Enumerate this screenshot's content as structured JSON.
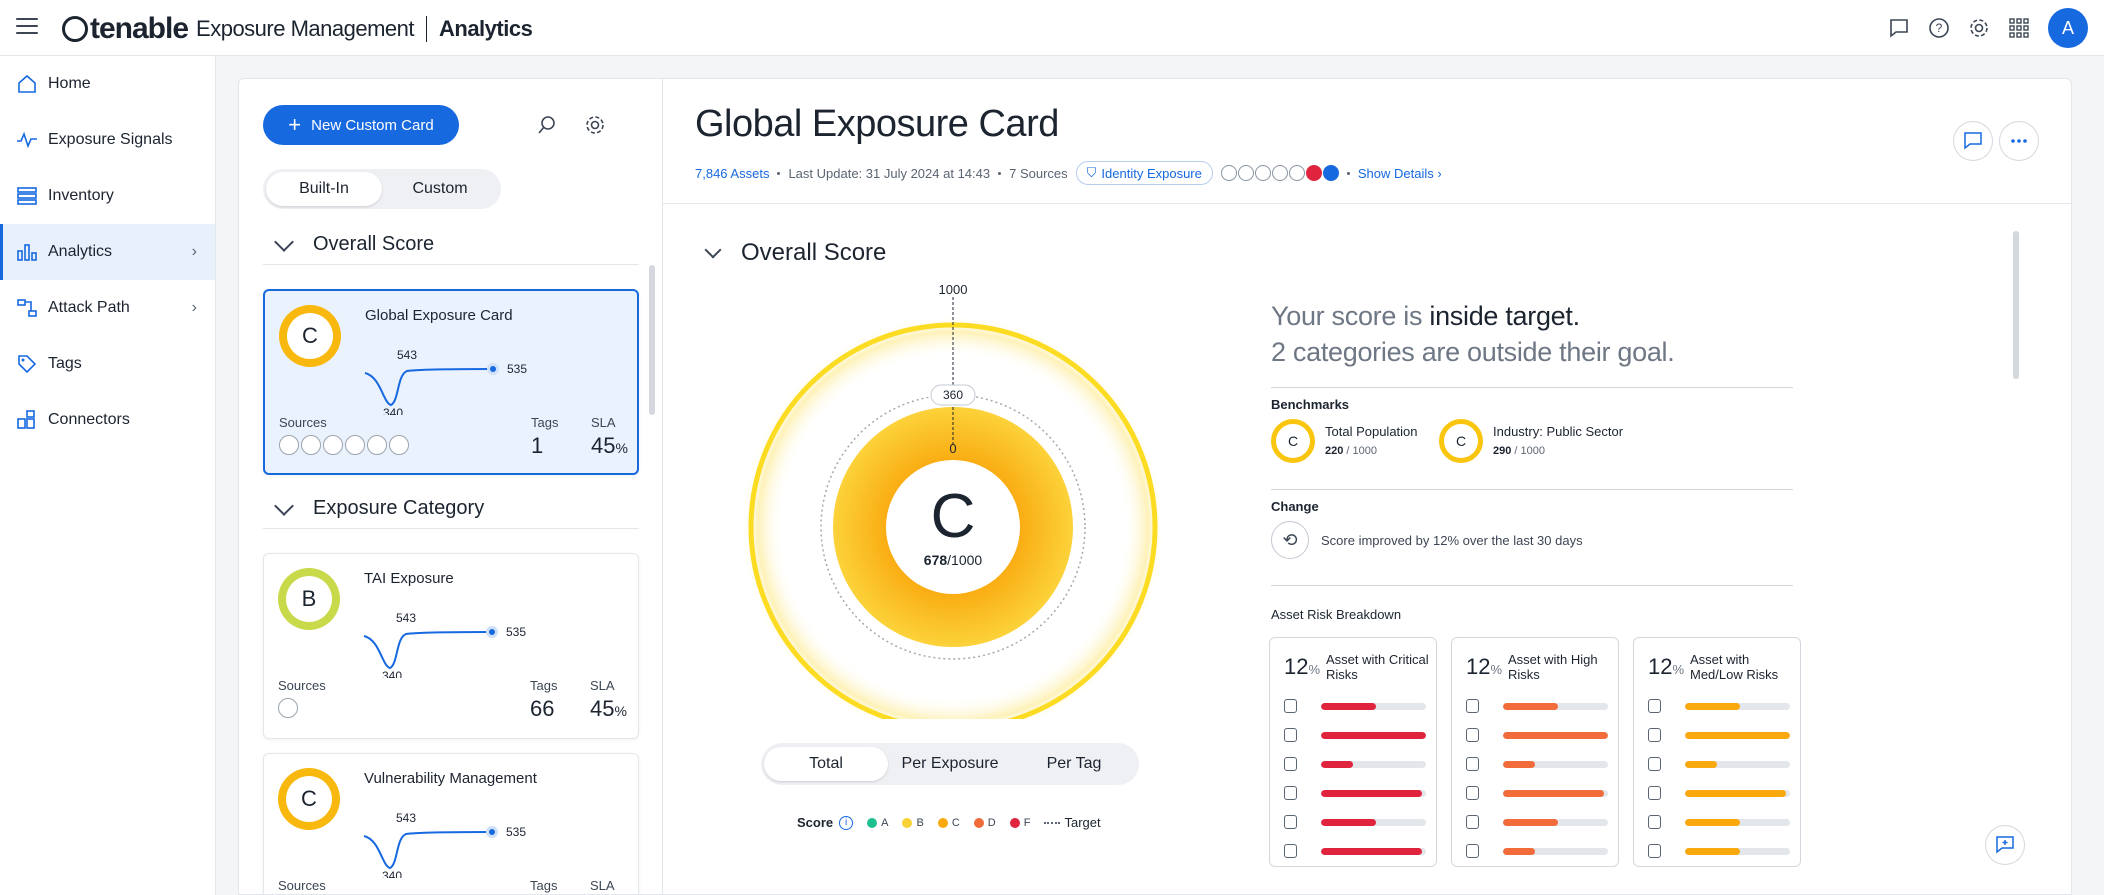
{
  "header": {
    "brand_name": "tenable",
    "product": "Exposure Management",
    "section": "Analytics",
    "avatar_initial": "A",
    "icons": [
      "chat-icon",
      "help-icon",
      "gear-icon",
      "apps-grid-icon"
    ]
  },
  "sidebar": {
    "items": [
      {
        "label": "Home",
        "icon": "home-icon"
      },
      {
        "label": "Exposure Signals",
        "icon": "signal-icon"
      },
      {
        "label": "Inventory",
        "icon": "inventory-icon"
      },
      {
        "label": "Analytics",
        "icon": "chart-icon",
        "active": true
      },
      {
        "label": "Attack Path",
        "icon": "attack-path-icon"
      },
      {
        "label": "Tags",
        "icon": "tag-icon"
      },
      {
        "label": "Connectors",
        "icon": "connectors-icon"
      }
    ]
  },
  "left_panel": {
    "new_card_label": "New Custom Card",
    "toggle": {
      "built_in": "Built-In",
      "custom": "Custom"
    },
    "section_overall": "Overall Score",
    "section_exposure": "Exposure Category",
    "cards": [
      {
        "title": "Global Exposure Card",
        "grade": "C",
        "grade_color": "#f9b80e",
        "high": "543",
        "low": "340",
        "current": "535",
        "sources_label": "Sources",
        "tags_label": "Tags",
        "tags": "1",
        "sla_label": "SLA",
        "sla": "45",
        "sla_unit": "%"
      },
      {
        "title": "TAI Exposure",
        "grade": "B",
        "grade_color": "#c8d94a",
        "high": "543",
        "low": "340",
        "current": "535",
        "sources_label": "Sources",
        "tags_label": "Tags",
        "tags": "66",
        "sla_label": "SLA",
        "sla": "45",
        "sla_unit": "%"
      },
      {
        "title": "Vulnerability Management",
        "grade": "C",
        "grade_color": "#f9b80e",
        "high": "543",
        "low": "340",
        "current": "535",
        "sources_label": "Sources",
        "tags_label": "Tags"
      }
    ]
  },
  "main": {
    "title": "Global Exposure Card",
    "assets": "7,846 Assets",
    "last_update": "Last Update: 31 July 2024 at 14:43",
    "sources": "7 Sources",
    "identity_chip": "Identity Exposure",
    "show_details": "Show Details",
    "overall_heading": "Overall Score",
    "gauge": {
      "max_label": "1000",
      "target_label": "360",
      "zero_label": "0",
      "grade": "C",
      "score": "678",
      "score_max": "/1000",
      "score_value": 678,
      "target_value": 360,
      "max_value": 1000
    },
    "tabs": [
      "Total",
      "Per Exposure",
      "Per Tag"
    ],
    "legend": {
      "title": "Score",
      "grades": [
        {
          "label": "A",
          "color": "#1fbf8f"
        },
        {
          "label": "B",
          "color": "#f9d235"
        },
        {
          "label": "C",
          "color": "#f9a80e"
        },
        {
          "label": "D",
          "color": "#f26b3a"
        },
        {
          "label": "F",
          "color": "#e0243d"
        }
      ],
      "target_label": "Target"
    },
    "summary_line1_prefix": "Your score is ",
    "summary_line1_em": "inside target.",
    "summary_line2": "2 categories are outside their goal.",
    "benchmarks_label": "Benchmarks",
    "benchmarks": [
      {
        "grade": "C",
        "name": "Total Population",
        "score": "220",
        "max": " / 1000"
      },
      {
        "grade": "C",
        "name": "Industry: Public Sector",
        "score": "290",
        "max": " / 1000"
      }
    ],
    "change_label": "Change",
    "change_text": "Score improved by 12% over the last 30 days",
    "breakdown_label": "Asset Risk Breakdown",
    "risk_cards": [
      {
        "pct": "12",
        "unit": "%",
        "title": "Asset with Critical Risks",
        "color": "#e0243d",
        "bars": [
          0.52,
          1.0,
          0.3,
          0.96,
          0.52,
          0.96
        ]
      },
      {
        "pct": "12",
        "unit": "%",
        "title": "Asset with High Risks",
        "color": "#f26b3a",
        "bars": [
          0.52,
          1.0,
          0.3,
          0.96,
          0.52,
          0.3
        ]
      },
      {
        "pct": "12",
        "unit": "%",
        "title": "Asset with Med/Low Risks",
        "color": "#f9a80e",
        "bars": [
          0.52,
          1.0,
          0.3,
          0.96,
          0.52,
          0.52
        ]
      }
    ]
  }
}
